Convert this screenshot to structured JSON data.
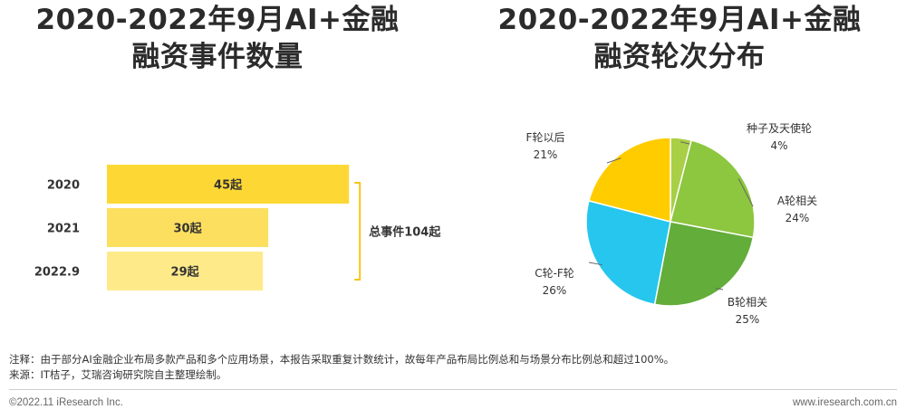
{
  "titles": {
    "left": [
      "2020-2022年9月AI+金融",
      "融资事件数量"
    ],
    "right": [
      "2020-2022年9月AI+金融",
      "融资轮次分布"
    ]
  },
  "chart_data": [
    {
      "type": "bar",
      "orientation": "horizontal",
      "categories": [
        "2020",
        "2021",
        "2022.9"
      ],
      "values": [
        45,
        30,
        29
      ],
      "value_labels": [
        "45起",
        "30起",
        "29起"
      ],
      "colors": [
        "#FDD835",
        "#FDDF5F",
        "#FFEA8A"
      ],
      "annotation": "总事件104起",
      "xlim": [
        0,
        48
      ],
      "grid": false
    },
    {
      "type": "pie",
      "labels": [
        "种子及天使轮",
        "A轮相关",
        "B轮相关",
        "C轮-F轮",
        "F轮以后"
      ],
      "values": [
        4,
        24,
        25,
        26,
        21
      ],
      "value_labels": [
        "4%",
        "24%",
        "25%",
        "26%",
        "21%"
      ],
      "colors": [
        "#A8CF45",
        "#8DC63F",
        "#63AD3A",
        "#26C6EE",
        "#FFCC00"
      ],
      "start": "top",
      "direction": "clockwise"
    }
  ],
  "notes": {
    "line1": "注释：由于部分AI金融企业布局多款产品和多个应用场景，本报告采取重复计数统计，故每年产品布局比例总和与场景分布比例总和超过100%。",
    "line2": "来源：IT桔子，艾瑞咨询研究院自主整理绘制。"
  },
  "footer": {
    "left": "©2022.11 iResearch Inc.",
    "right": "www.iresearch.com.cn"
  }
}
